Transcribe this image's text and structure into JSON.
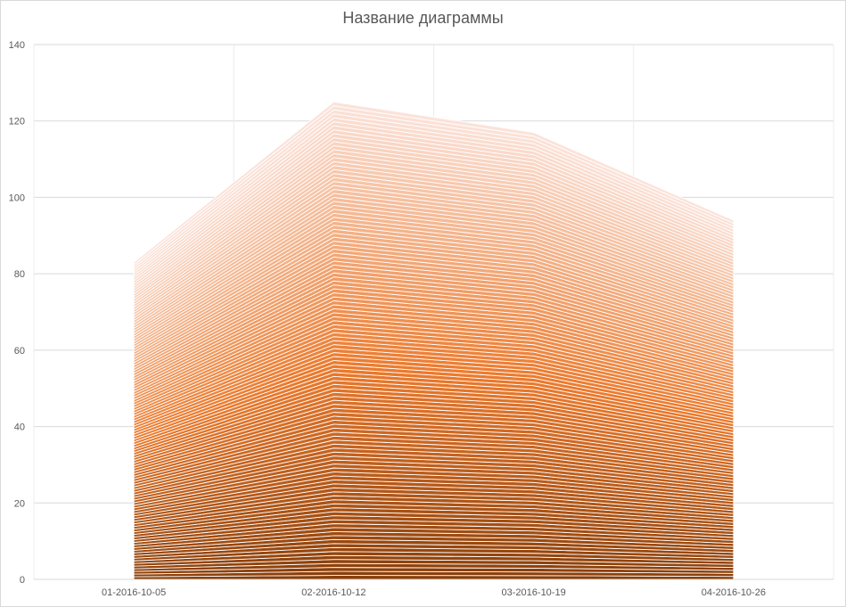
{
  "chart_data": {
    "type": "area",
    "stacked": true,
    "title": "Название диаграммы",
    "xlabel": "",
    "ylabel": "",
    "categories": [
      "01-2016-10-05",
      "02-2016-10-12",
      "03-2016-10-19",
      "04-2016-10-26"
    ],
    "ylim": [
      0,
      140
    ],
    "yticks": [
      0,
      20,
      40,
      60,
      80,
      100,
      120,
      140
    ],
    "grid": true,
    "legend": "none",
    "series_count": 120,
    "totals": [
      83,
      125,
      117,
      94
    ],
    "colors": {
      "dark": "#8a3e08",
      "mid": "#ec7b2e",
      "light": "#fbe3da",
      "separator": "#ffffff",
      "grid": "#d9d9d9",
      "text": "#595959"
    }
  }
}
